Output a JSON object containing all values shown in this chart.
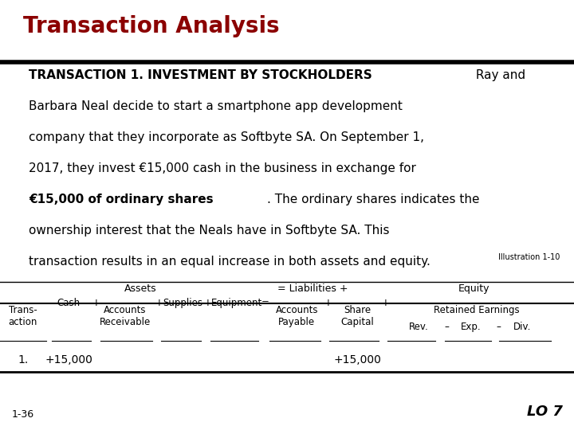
{
  "title": "Transaction Analysis",
  "title_color": "#8B0000",
  "bg_color": "#FFFFFF",
  "paragraph_line1_bold": "TRANSACTION 1. INVESTMENT BY STOCKHOLDERS",
  "paragraph_line1_normal": " Ray and",
  "paragraph_lines_normal": [
    "Barbara Neal decide to start a smartphone app development",
    "company that they incorporate as Softbyte SA. On September 1,",
    "2017, they invest €15,000 cash in the business in exchange for"
  ],
  "paragraph_line5_bold": "€15,000 of ordinary shares",
  "paragraph_line5_normal": ". The ordinary shares indicates the",
  "paragraph_lines_normal2": [
    "ownership interest that the Neals have in Softbyte SA. This",
    "transaction results in an equal increase in both assets and equity."
  ],
  "illustration": "Illustration 1-10",
  "footer_left": "1-36",
  "footer_right": "LO 7",
  "title_fontsize": 20,
  "body_fontsize": 11,
  "col_fontsize": 8.5,
  "data_fontsize": 10
}
